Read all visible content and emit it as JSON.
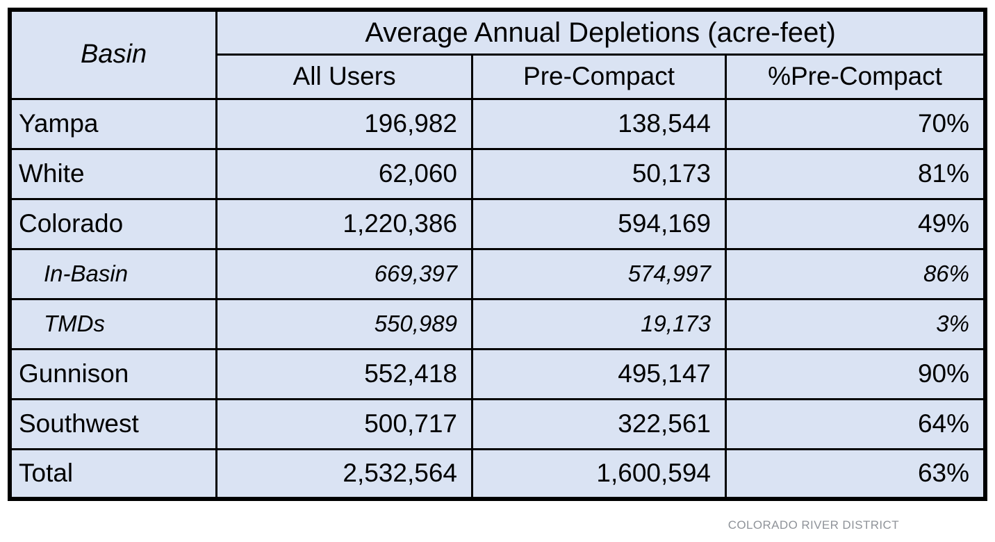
{
  "table": {
    "header": {
      "basin_label": "Basin",
      "group_title": "Average Annual Depletions (acre-feet)",
      "columns": [
        "All Users",
        "Pre-Compact",
        "%Pre-Compact"
      ]
    },
    "rows": [
      {
        "basin": "Yampa",
        "all_users": "196,982",
        "pre_compact": "138,544",
        "pct": "70%"
      },
      {
        "basin": "White",
        "all_users": "62,060",
        "pre_compact": "50,173",
        "pct": "81%"
      },
      {
        "basin": "Colorado",
        "all_users": "1,220,386",
        "pre_compact": "594,169",
        "pct": "49%"
      },
      {
        "basin": "In-Basin",
        "all_users": "669,397",
        "pre_compact": "574,997",
        "pct": "86%"
      },
      {
        "basin": "TMDs",
        "all_users": "550,989",
        "pre_compact": "19,173",
        "pct": "3%"
      },
      {
        "basin": "Gunnison",
        "all_users": "552,418",
        "pre_compact": "495,147",
        "pct": "90%"
      },
      {
        "basin": "Southwest",
        "all_users": "500,717",
        "pre_compact": "322,561",
        "pct": "64%"
      },
      {
        "basin": "Total",
        "all_users": "2,532,564",
        "pre_compact": "1,600,594",
        "pct": "63%"
      }
    ]
  },
  "footer": {
    "attribution": "COLORADO RIVER DISTRICT"
  },
  "colors": {
    "cell_background": "#dae3f3",
    "border": "#000000",
    "attribution_text": "#8f9399"
  },
  "chart_data": {
    "type": "table",
    "title": "Average Annual Depletions (acre-feet)",
    "columns": [
      "Basin",
      "All Users",
      "Pre-Compact",
      "%Pre-Compact"
    ],
    "rows": [
      [
        "Yampa",
        196982,
        138544,
        "70%"
      ],
      [
        "White",
        62060,
        50173,
        "81%"
      ],
      [
        "Colorado",
        1220386,
        594169,
        "49%"
      ],
      [
        "In-Basin",
        669397,
        574997,
        "86%"
      ],
      [
        "TMDs",
        550989,
        19173,
        "3%"
      ],
      [
        "Gunnison",
        552418,
        495147,
        "90%"
      ],
      [
        "Southwest",
        500717,
        322561,
        "64%"
      ],
      [
        "Total",
        2532564,
        1600594,
        "63%"
      ]
    ],
    "notes": "In-Basin and TMDs are italicized sub-rows of the Colorado basin; units are acre-feet"
  }
}
